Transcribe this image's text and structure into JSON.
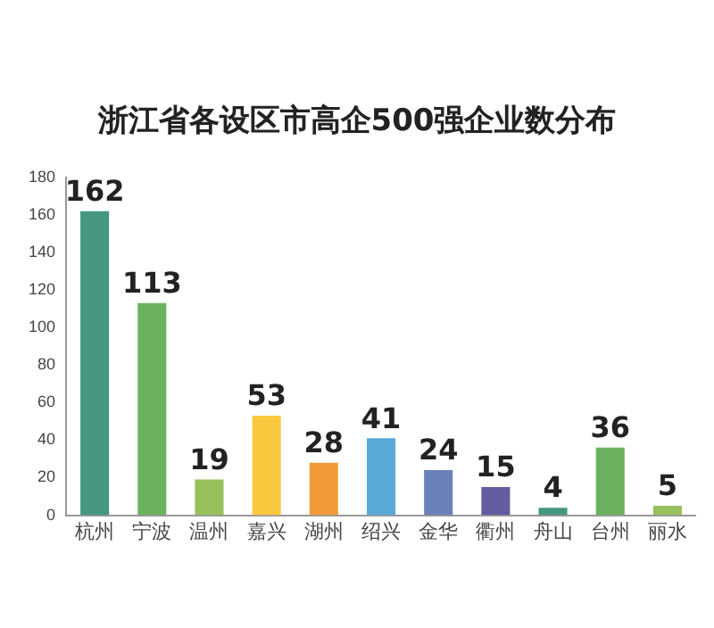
{
  "chart_data": {
    "type": "bar",
    "title": "浙江省各设区市高企500强企业数分布",
    "categories": [
      "杭州",
      "宁波",
      "温州",
      "嘉兴",
      "湖州",
      "绍兴",
      "金华",
      "衢州",
      "舟山",
      "台州",
      "丽水"
    ],
    "values": [
      162,
      113,
      19,
      53,
      28,
      41,
      24,
      15,
      4,
      36,
      5
    ],
    "colors": [
      "#45977f",
      "#6bb160",
      "#98c05c",
      "#fbc93f",
      "#f29a3a",
      "#5aaad8",
      "#6a80b8",
      "#625d9e",
      "#45977f",
      "#6bb160",
      "#98c05c"
    ],
    "ylim": [
      0,
      180
    ],
    "yticks": [
      0,
      20,
      40,
      60,
      80,
      100,
      120,
      140,
      160,
      180
    ],
    "grid": false,
    "data_labels": true,
    "legend": false
  }
}
